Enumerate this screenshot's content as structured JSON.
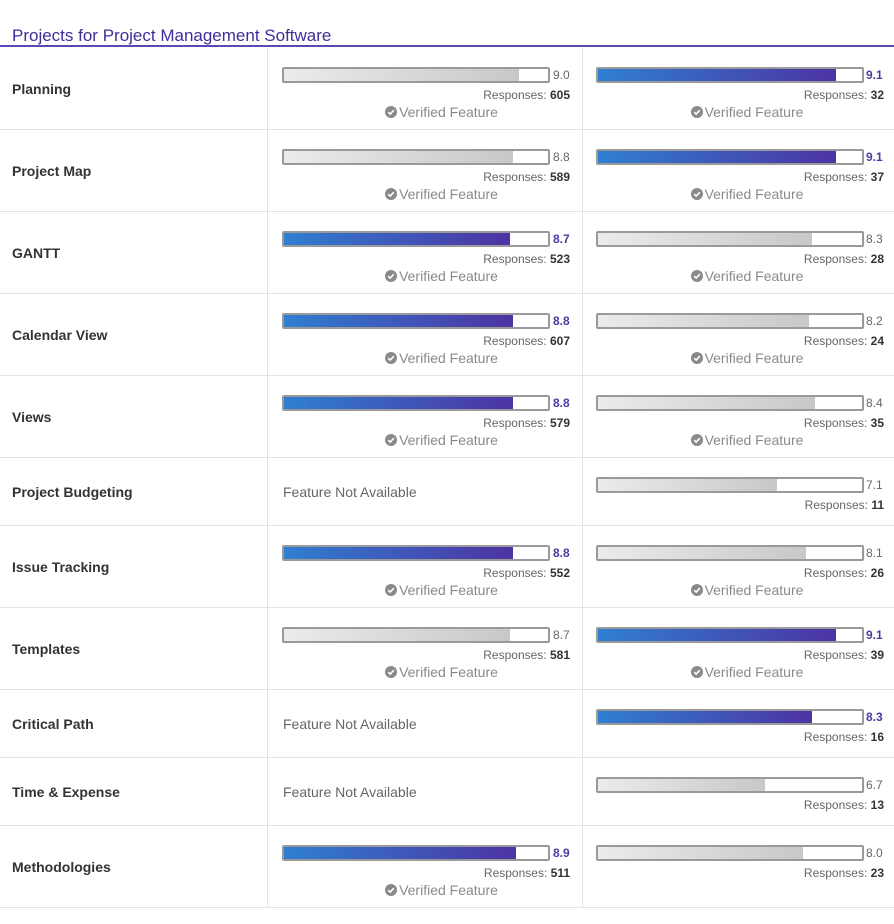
{
  "page": {
    "title": "Projects for Project Management Software"
  },
  "labels": {
    "responses": "Responses:",
    "verified": "Verified Feature",
    "not_available": "Feature Not Available"
  },
  "rows": [
    {
      "feature": "Planning",
      "a": {
        "available": true,
        "score": "9.0",
        "value": 9.0,
        "responses": "605",
        "highlight": false,
        "verified": true
      },
      "b": {
        "available": true,
        "score": "9.1",
        "value": 9.1,
        "responses": "32",
        "highlight": true,
        "verified": true
      }
    },
    {
      "feature": "Project Map",
      "a": {
        "available": true,
        "score": "8.8",
        "value": 8.8,
        "responses": "589",
        "highlight": false,
        "verified": true
      },
      "b": {
        "available": true,
        "score": "9.1",
        "value": 9.1,
        "responses": "37",
        "highlight": true,
        "verified": true
      }
    },
    {
      "feature": "GANTT",
      "a": {
        "available": true,
        "score": "8.7",
        "value": 8.7,
        "responses": "523",
        "highlight": true,
        "verified": true
      },
      "b": {
        "available": true,
        "score": "8.3",
        "value": 8.3,
        "responses": "28",
        "highlight": false,
        "verified": true
      }
    },
    {
      "feature": "Calendar View",
      "a": {
        "available": true,
        "score": "8.8",
        "value": 8.8,
        "responses": "607",
        "highlight": true,
        "verified": true
      },
      "b": {
        "available": true,
        "score": "8.2",
        "value": 8.2,
        "responses": "24",
        "highlight": false,
        "verified": true
      }
    },
    {
      "feature": "Views",
      "a": {
        "available": true,
        "score": "8.8",
        "value": 8.8,
        "responses": "579",
        "highlight": true,
        "verified": true
      },
      "b": {
        "available": true,
        "score": "8.4",
        "value": 8.4,
        "responses": "35",
        "highlight": false,
        "verified": true
      }
    },
    {
      "feature": "Project Budgeting",
      "a": {
        "available": false
      },
      "b": {
        "available": true,
        "score": "7.1",
        "value": 7.1,
        "responses": "11",
        "highlight": false,
        "verified": false
      }
    },
    {
      "feature": "Issue Tracking",
      "a": {
        "available": true,
        "score": "8.8",
        "value": 8.8,
        "responses": "552",
        "highlight": true,
        "verified": true
      },
      "b": {
        "available": true,
        "score": "8.1",
        "value": 8.1,
        "responses": "26",
        "highlight": false,
        "verified": true
      }
    },
    {
      "feature": "Templates",
      "a": {
        "available": true,
        "score": "8.7",
        "value": 8.7,
        "responses": "581",
        "highlight": false,
        "verified": true
      },
      "b": {
        "available": true,
        "score": "9.1",
        "value": 9.1,
        "responses": "39",
        "highlight": true,
        "verified": true
      }
    },
    {
      "feature": "Critical Path",
      "a": {
        "available": false
      },
      "b": {
        "available": true,
        "score": "8.3",
        "value": 8.3,
        "responses": "16",
        "highlight": true,
        "verified": false
      }
    },
    {
      "feature": "Time & Expense",
      "a": {
        "available": false
      },
      "b": {
        "available": true,
        "score": "6.7",
        "value": 6.7,
        "responses": "13",
        "highlight": false,
        "verified": false
      }
    },
    {
      "feature": "Methodologies",
      "a": {
        "available": true,
        "score": "8.9",
        "value": 8.9,
        "responses": "511",
        "highlight": true,
        "verified": true
      },
      "b": {
        "available": true,
        "score": "8.0",
        "value": 8.0,
        "responses": "23",
        "highlight": false,
        "verified": false
      }
    }
  ],
  "scale_max": 10
}
